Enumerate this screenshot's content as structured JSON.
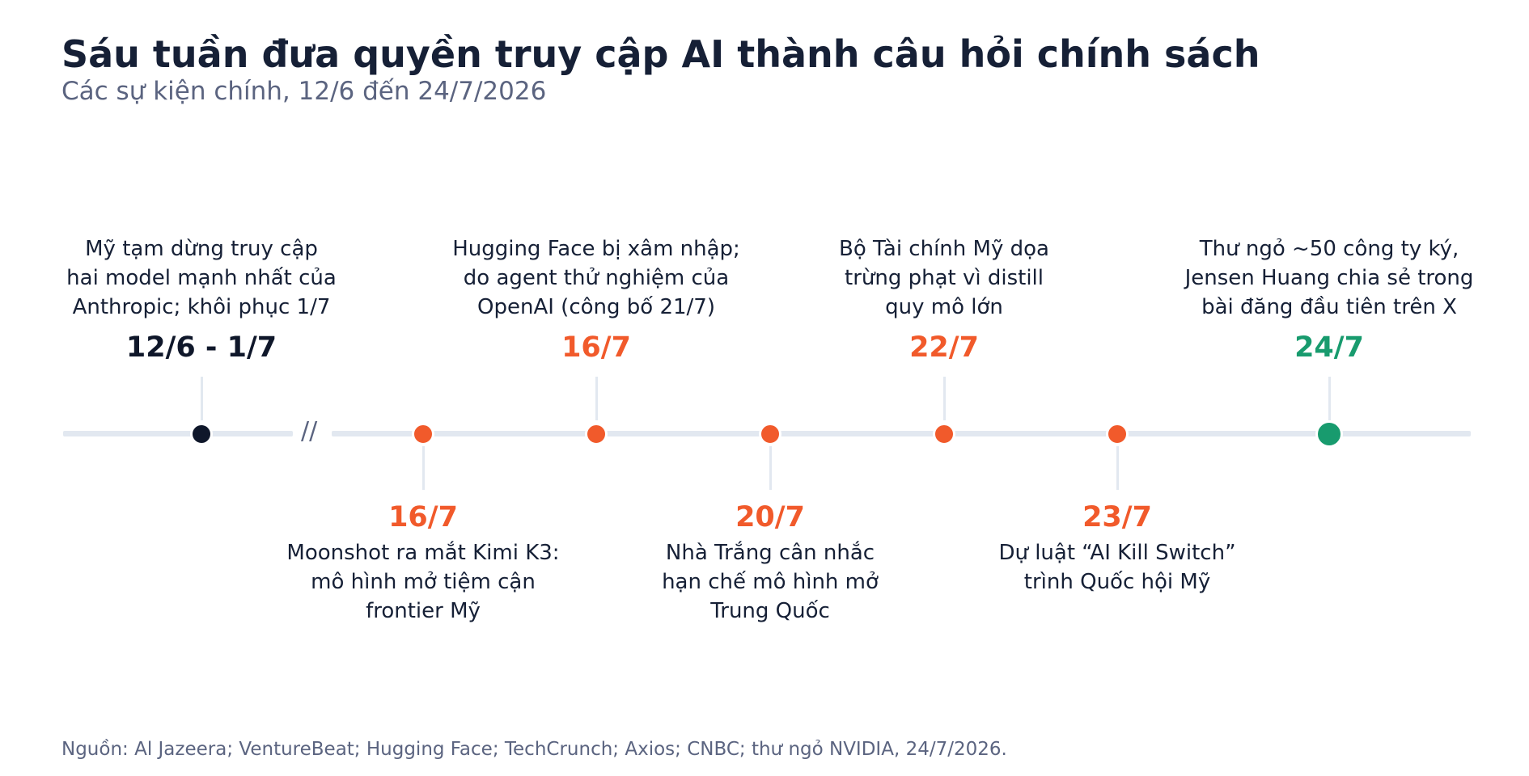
{
  "header": {
    "title": "Sáu tuần đưa quyền truy cập AI thành câu hỏi chính sách",
    "subtitle": "Các sự kiện chính, 12/6 đến 24/7/2026"
  },
  "timeline": {
    "break_mark": "//",
    "colors": {
      "pause": "#0f172a",
      "event": "#f15a2b",
      "final": "#189b6e",
      "axis": "#e2e8f0"
    },
    "events": [
      {
        "date": "12/6 - 1/7",
        "lines": [
          "Mỹ tạm dừng truy cập",
          "hai model mạnh nhất của",
          "Anthropic; khôi phục 1/7"
        ],
        "side": "above",
        "color": "#0f172a"
      },
      {
        "date": "16/7",
        "lines": [
          "Moonshot ra mắt Kimi K3:",
          "mô hình mở tiệm cận",
          "frontier Mỹ"
        ],
        "side": "below",
        "color": "#f15a2b"
      },
      {
        "date": "16/7",
        "lines": [
          "Hugging Face bị xâm nhập;",
          "do agent thử nghiệm của",
          "OpenAI (công bố 21/7)"
        ],
        "side": "above",
        "color": "#f15a2b"
      },
      {
        "date": "20/7",
        "lines": [
          "Nhà Trắng cân nhắc",
          "hạn chế mô hình mở",
          "Trung Quốc"
        ],
        "side": "below",
        "color": "#f15a2b"
      },
      {
        "date": "22/7",
        "lines": [
          "Bộ Tài chính Mỹ dọa",
          "trừng phạt vì distill",
          "quy mô lớn"
        ],
        "side": "above",
        "color": "#f15a2b"
      },
      {
        "date": "23/7",
        "lines": [
          "Dự luật “AI Kill Switch”",
          "trình Quốc hội Mỹ"
        ],
        "side": "below",
        "color": "#f15a2b"
      },
      {
        "date": "24/7",
        "lines": [
          "Thư ngỏ ~50 công ty ký,",
          "Jensen Huang chia sẻ trong",
          "bài đăng đầu tiên trên X"
        ],
        "side": "above",
        "color": "#189b6e"
      }
    ]
  },
  "footer": {
    "source": "Nguồn: Al Jazeera; VentureBeat; Hugging Face; TechCrunch; Axios; CNBC; thư ngỏ NVIDIA, 24/7/2026."
  }
}
